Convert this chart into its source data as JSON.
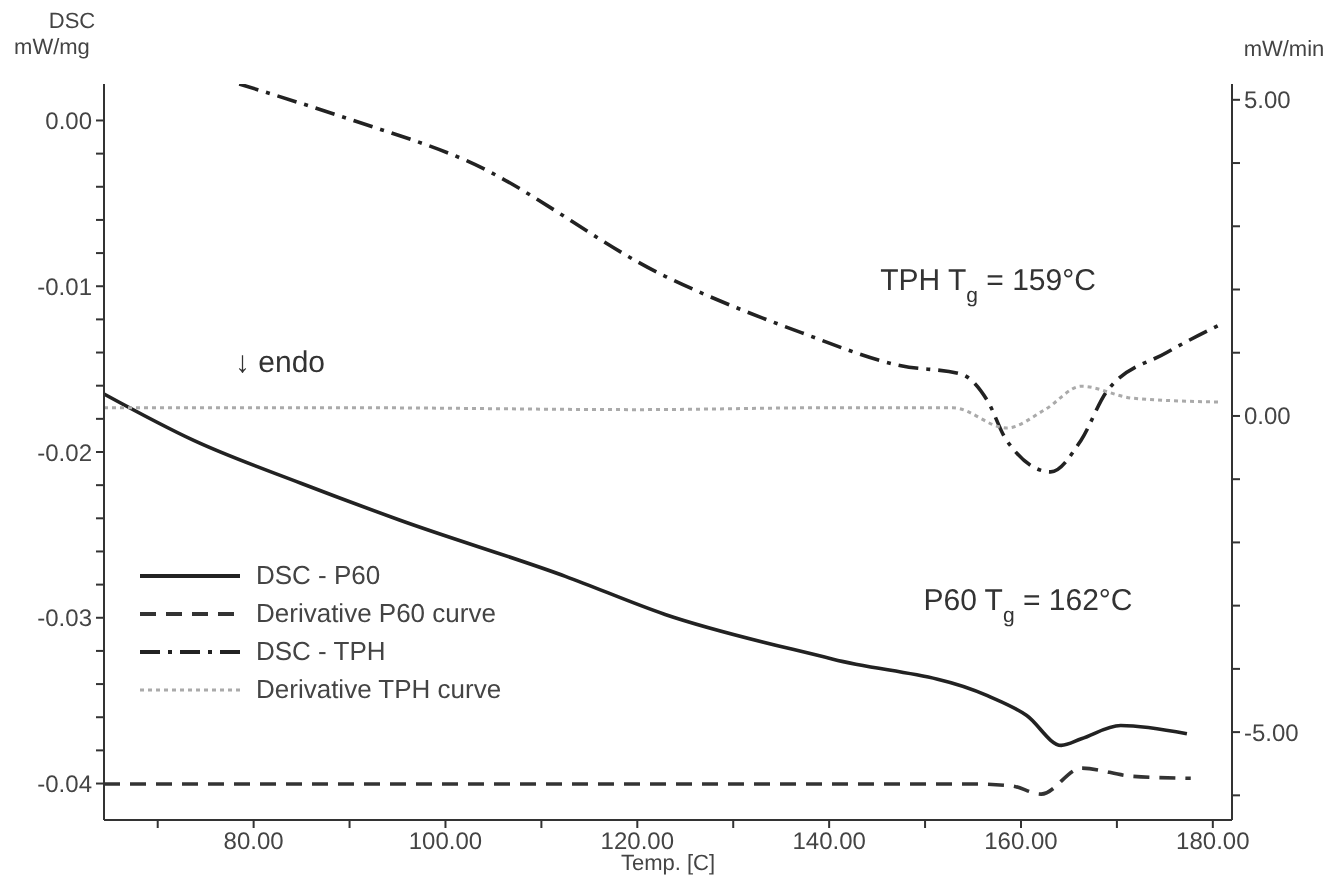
{
  "chart_data": {
    "type": "line",
    "xlabel": "Temp. [C]",
    "ylabel": "DSC mW/mg",
    "y2label": "mW/min",
    "xlim": [
      64.4,
      182
    ],
    "xticks": [
      {
        "value": 70,
        "label": null
      },
      {
        "value": 80,
        "label": "80.00"
      },
      {
        "value": 90,
        "label": null
      },
      {
        "value": 100,
        "label": "100.00"
      },
      {
        "value": 110,
        "label": null
      },
      {
        "value": 120,
        "label": "120.00"
      },
      {
        "value": 130,
        "label": null
      },
      {
        "value": 140,
        "label": "140.00"
      },
      {
        "value": 150,
        "label": null
      },
      {
        "value": 160,
        "label": "160.00"
      },
      {
        "value": 170,
        "label": null
      },
      {
        "value": 180,
        "label": "180.00"
      }
    ],
    "ylim": [
      -0.0422,
      0.0022
    ],
    "yticks": [
      {
        "value": 0,
        "label": "0.00"
      },
      {
        "value": -0.002,
        "label": null
      },
      {
        "value": -0.004,
        "label": null
      },
      {
        "value": -0.006,
        "label": null
      },
      {
        "value": -0.008,
        "label": null
      },
      {
        "value": -0.01,
        "label": "-0.01"
      },
      {
        "value": -0.012,
        "label": null
      },
      {
        "value": -0.014,
        "label": null
      },
      {
        "value": -0.016,
        "label": null
      },
      {
        "value": -0.018,
        "label": null
      },
      {
        "value": -0.02,
        "label": "-0.02"
      },
      {
        "value": -0.022,
        "label": null
      },
      {
        "value": -0.024,
        "label": null
      },
      {
        "value": -0.026,
        "label": null
      },
      {
        "value": -0.028,
        "label": null
      },
      {
        "value": -0.03,
        "label": "-0.03"
      },
      {
        "value": -0.032,
        "label": null
      },
      {
        "value": -0.034,
        "label": null
      },
      {
        "value": -0.036,
        "label": null
      },
      {
        "value": -0.038,
        "label": null
      },
      {
        "value": -0.04,
        "label": "-0.04"
      }
    ],
    "y2lim": [
      -6.39,
      5.25
    ],
    "y2ticks": [
      {
        "value": 5,
        "label": "5.00"
      },
      {
        "value": 4,
        "label": null
      },
      {
        "value": 3,
        "label": null
      },
      {
        "value": 2,
        "label": null
      },
      {
        "value": 1,
        "label": null
      },
      {
        "value": 0,
        "label": "0.00"
      },
      {
        "value": -1,
        "label": null
      },
      {
        "value": -2,
        "label": null
      },
      {
        "value": -3,
        "label": null
      },
      {
        "value": -4,
        "label": null
      },
      {
        "value": -5,
        "label": "-5.00"
      },
      {
        "value": -6,
        "label": null
      }
    ],
    "grid": false,
    "legend": "bottom left",
    "marker": "none",
    "annotations": [
      "↓ endo",
      "TPH T$_{g}$ = 159°C",
      "P60 T$_{g}$ = 162°C"
    ],
    "series": [
      {
        "name": "DSC - P60",
        "color": "#222222",
        "line_style": "solid",
        "x": [
          64.4,
          73.75,
          85,
          95.2,
          112.5,
          122.9,
          140.4,
          156.5,
          160.6,
          164.2,
          166.3,
          170.4,
          177.3
        ],
        "values": [
          -0.0165,
          -0.0193,
          -0.0219,
          -0.0241,
          -0.0275,
          -0.0298,
          -0.0325,
          -0.0347,
          -0.0359,
          -0.0377,
          -0.0373,
          -0.0365,
          -0.037
        ]
      },
      {
        "name": "Derivative P60 curve",
        "color": "#333333",
        "line_style": "dashed",
        "axis": "y2",
        "x": [
          64.4,
          100,
          130,
          155,
          159,
          162.1,
          166.3,
          171.7,
          177.7
        ],
        "values": [
          -5.82,
          -5.82,
          -5.82,
          -5.82,
          -5.85,
          -5.98,
          -5.57,
          -5.7,
          -5.73
        ]
      },
      {
        "name": "DSC - TPH",
        "color": "#222222",
        "line_style": "dashdot",
        "x": [
          78.5,
          90.4,
          102.1,
          122.9,
          137.1,
          147.5,
          153.75,
          156.5,
          158.5,
          163.1,
          166.25,
          169,
          175.2,
          180.8
        ],
        "values": [
          0.0022,
          0,
          -0.0024,
          -0.0094,
          -0.0128,
          -0.0148,
          -0.0153,
          -0.0169,
          -0.0193,
          -0.0212,
          -0.0193,
          -0.0163,
          -0.014,
          -0.0123
        ]
      },
      {
        "name": "Derivative TPH curve",
        "color": "#aaaaaa",
        "line_style": "dotted",
        "axis": "y2",
        "x": [
          64.4,
          90,
          120,
          140,
          152.9,
          158.5,
          162.5,
          166.3,
          171.7,
          180.8
        ],
        "values": [
          0.13,
          0.13,
          0.1,
          0.13,
          0.13,
          -0.19,
          0.1,
          0.47,
          0.28,
          0.22
        ]
      }
    ]
  }
}
